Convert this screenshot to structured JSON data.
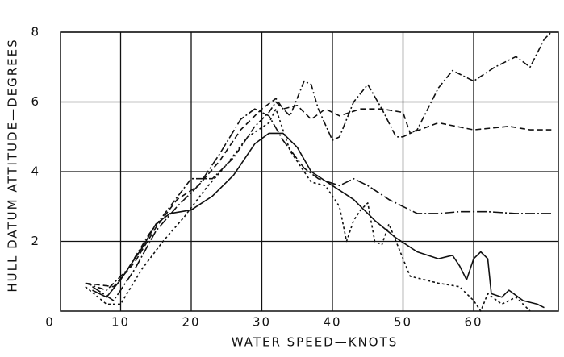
{
  "chart_data": {
    "type": "line",
    "xlabel": "WATER SPEED—KNOTS",
    "ylabel": "HULL DATUM ATTITUDE—DEGREES",
    "xlim": [
      0,
      72
    ],
    "ylim": [
      0,
      8
    ],
    "xticks": [
      0,
      10,
      20,
      30,
      40,
      50,
      60
    ],
    "yticks": [
      2,
      4,
      6,
      8
    ],
    "grid": true,
    "series": [
      {
        "color": "#111111",
        "dash": "none",
        "x": [
          6,
          8,
          10,
          13,
          15,
          17,
          20,
          23,
          26,
          29,
          31,
          33,
          35,
          37,
          40,
          43,
          46,
          49,
          52,
          55,
          57,
          58,
          59,
          60,
          61,
          62,
          62.5,
          64,
          65,
          67,
          69,
          70
        ],
        "values": [
          0.6,
          0.4,
          0.9,
          1.8,
          2.5,
          2.8,
          2.9,
          3.3,
          3.9,
          4.8,
          5.1,
          5.1,
          4.7,
          4.0,
          3.6,
          3.2,
          2.6,
          2.1,
          1.7,
          1.5,
          1.6,
          1.3,
          0.9,
          1.5,
          1.7,
          1.5,
          0.5,
          0.4,
          0.6,
          0.3,
          0.2,
          0.1
        ]
      },
      {
        "color": "#111111",
        "dash": "3,3",
        "x": [
          5,
          8,
          10,
          13,
          16,
          19,
          22,
          25,
          28,
          31,
          32,
          34,
          37,
          39,
          41,
          42,
          43,
          44,
          45,
          46,
          47,
          48,
          49,
          51,
          55,
          58,
          60,
          61,
          62,
          64,
          66,
          68
        ],
        "values": [
          0.7,
          0.2,
          0.2,
          1.2,
          2.0,
          2.7,
          3.5,
          4.2,
          5.0,
          5.4,
          5.8,
          4.6,
          3.7,
          3.6,
          3.0,
          2.0,
          2.6,
          2.9,
          3.1,
          2.0,
          1.9,
          2.5,
          2.0,
          1.0,
          0.8,
          0.7,
          0.3,
          0.0,
          0.5,
          0.2,
          0.4,
          0.0
        ]
      },
      {
        "color": "#111111",
        "dash": "8,3,2,3",
        "x": [
          5,
          8,
          11,
          14,
          17,
          20,
          23,
          26,
          29,
          31,
          32,
          34,
          36,
          37,
          38,
          40,
          41,
          43,
          45,
          47,
          49,
          50,
          52,
          55,
          57,
          60,
          63,
          66,
          68,
          70,
          71
        ],
        "values": [
          0.8,
          0.6,
          1.2,
          2.2,
          3.0,
          3.8,
          3.8,
          4.4,
          5.3,
          5.7,
          6.0,
          5.6,
          6.6,
          6.5,
          5.8,
          4.9,
          5.0,
          6.0,
          6.5,
          5.8,
          5.0,
          5.0,
          5.2,
          6.4,
          6.9,
          6.6,
          7.0,
          7.3,
          7.0,
          7.8,
          8.0
        ]
      },
      {
        "color": "#111111",
        "dash": "7,4",
        "x": [
          5,
          9,
          12,
          15,
          18,
          21,
          24,
          27,
          30,
          32,
          33,
          35,
          37,
          39,
          41,
          44,
          47,
          50,
          51,
          55,
          60,
          65,
          68,
          71
        ],
        "values": [
          0.8,
          0.7,
          1.4,
          2.4,
          3.2,
          3.6,
          4.3,
          5.2,
          5.8,
          6.1,
          5.8,
          5.9,
          5.5,
          5.8,
          5.6,
          5.8,
          5.8,
          5.7,
          5.1,
          5.4,
          5.2,
          5.3,
          5.2,
          5.2
        ]
      },
      {
        "color": "#111111",
        "dash": "12,3,2,3",
        "x": [
          6,
          9,
          12,
          15,
          18,
          21,
          24,
          27,
          29,
          31,
          33,
          36,
          38,
          41,
          43,
          45,
          48,
          50,
          52,
          55,
          58,
          62,
          66,
          71
        ],
        "values": [
          0.7,
          0.3,
          1.2,
          2.3,
          3.0,
          3.6,
          4.5,
          5.5,
          5.8,
          5.6,
          4.9,
          4.1,
          3.8,
          3.6,
          3.8,
          3.6,
          3.2,
          3.0,
          2.8,
          2.8,
          2.85,
          2.85,
          2.8,
          2.8
        ]
      }
    ]
  }
}
